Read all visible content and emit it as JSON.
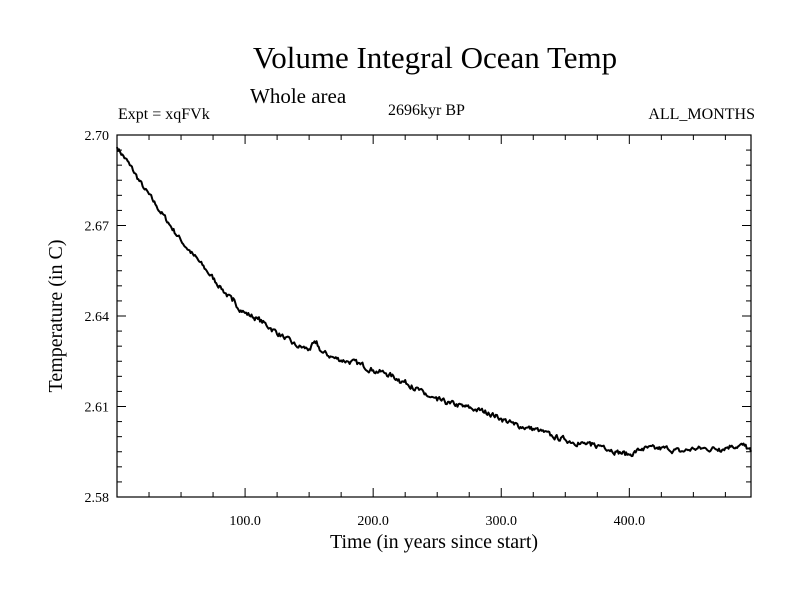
{
  "header": {
    "title": "Volume Integral Ocean Temp",
    "subtitle": "Whole area",
    "experiment": "Expt = xqFVk",
    "period": "2696kyr BP",
    "months": "ALL_MONTHS"
  },
  "chart_data": {
    "type": "line",
    "title": "Volume Integral Ocean Temp",
    "subtitle": "Whole area",
    "xlabel": "Time (in years since start)",
    "ylabel": "Temperature (in C)",
    "xlim": [
      0,
      495
    ],
    "ylim": [
      2.58,
      2.7
    ],
    "x_ticks": [
      100,
      200,
      300,
      400
    ],
    "x_tick_labels": [
      "100.0",
      "200.0",
      "300.0",
      "400.0"
    ],
    "y_ticks": [
      2.58,
      2.61,
      2.64,
      2.67,
      2.7
    ],
    "y_tick_labels": [
      "2.58",
      "2.61",
      "2.64",
      "2.67",
      "2.70"
    ],
    "grid": false,
    "series": [
      {
        "name": "Volume Integral Ocean Temp",
        "color": "#000000",
        "x": [
          0,
          10,
          20,
          30,
          40,
          50,
          60,
          70,
          80,
          90,
          100,
          110,
          120,
          130,
          140,
          150,
          155,
          160,
          170,
          180,
          190,
          200,
          210,
          220,
          230,
          240,
          250,
          260,
          270,
          280,
          290,
          300,
          310,
          320,
          330,
          340,
          350,
          360,
          370,
          380,
          390,
          400,
          410,
          420,
          430,
          440,
          450,
          460,
          470,
          480,
          490,
          495
        ],
        "values": [
          2.696,
          2.69,
          2.683,
          2.677,
          2.671,
          2.665,
          2.66,
          2.655,
          2.65,
          2.645,
          2.641,
          2.639,
          2.636,
          2.633,
          2.63,
          2.629,
          2.631,
          2.628,
          2.626,
          2.625,
          2.624,
          2.622,
          2.621,
          2.619,
          2.617,
          2.614,
          2.612,
          2.611,
          2.61,
          2.609,
          2.608,
          2.606,
          2.604,
          2.603,
          2.602,
          2.6,
          2.599,
          2.598,
          2.597,
          2.597,
          2.595,
          2.594,
          2.596,
          2.596,
          2.596,
          2.595,
          2.596,
          2.596,
          2.596,
          2.597,
          2.597,
          2.595
        ]
      }
    ]
  }
}
